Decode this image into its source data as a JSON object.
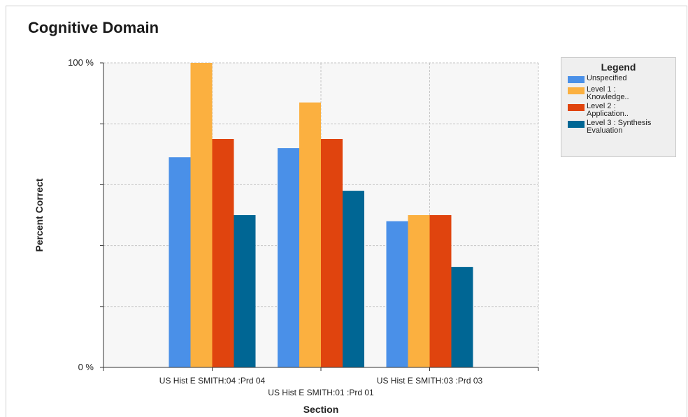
{
  "chart_data": {
    "type": "bar",
    "title": "Cognitive Domain",
    "xlabel": "Section",
    "ylabel": "Percent Correct",
    "ylim": [
      0,
      100
    ],
    "y_tick_labels": [
      "0 %",
      "100 %"
    ],
    "grid": true,
    "legend_title": "Legend",
    "legend_position": "top-right",
    "categories": [
      "US Hist E   SMITH:04 :Prd 04",
      "US Hist E   SMITH:01 :Prd 01",
      "US Hist E   SMITH:03 :Prd 03"
    ],
    "series": [
      {
        "name": "Unspecified",
        "color": "#4a90e8",
        "values": [
          69,
          72,
          48
        ]
      },
      {
        "name": "Level 1 : Knowledge..",
        "color": "#fbb040",
        "values": [
          100,
          87,
          50
        ]
      },
      {
        "name": "Level 2 : Application..",
        "color": "#e0440e",
        "values": [
          75,
          75,
          50
        ]
      },
      {
        "name": "Level 3 : Synthesis Evaluation",
        "color": "#006694",
        "values": [
          50,
          58,
          33
        ]
      }
    ]
  }
}
